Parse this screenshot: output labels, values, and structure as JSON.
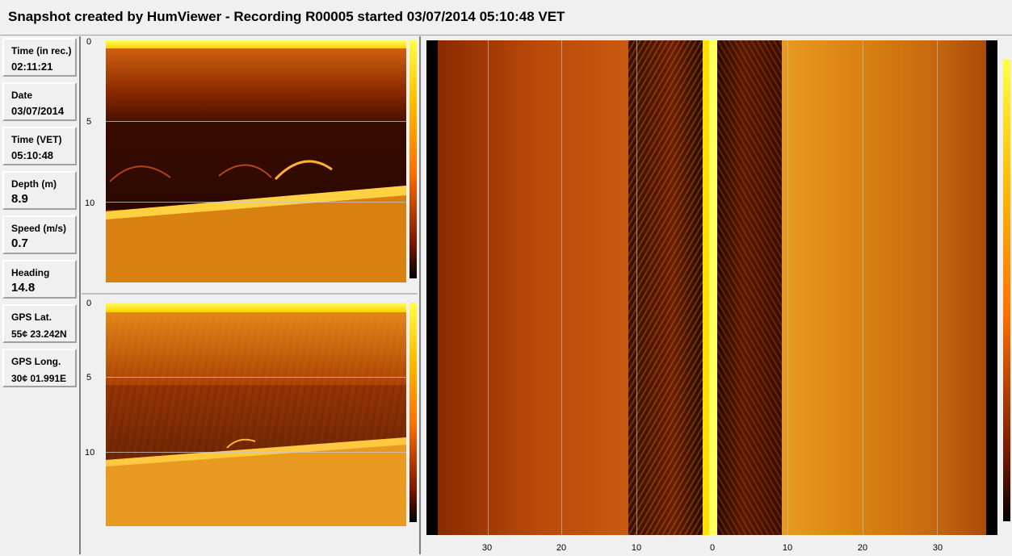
{
  "header": {
    "title": "Snapshot created by HumViewer - Recording R00005 started 03/07/2014 05:10:48 VET"
  },
  "info_panel": {
    "items": [
      {
        "label": "Time (in rec.)",
        "value": "02:11:21"
      },
      {
        "label": "Date",
        "value": "03/07/2014"
      },
      {
        "label": "Time (VET)",
        "value": "05:10:48"
      },
      {
        "label": "Depth (m)",
        "value": "8.9"
      },
      {
        "label": "Speed (m/s)",
        "value": "0.7"
      },
      {
        "label": "Heading",
        "value": "14.8"
      },
      {
        "label": "GPS Lat.",
        "value": "55¢ 23.242N"
      },
      {
        "label": "GPS Long.",
        "value": "30¢ 01.991E"
      }
    ]
  },
  "down_scan_top": {
    "depth_ticks": [
      "0",
      "5",
      "10"
    ]
  },
  "down_scan_bottom": {
    "depth_ticks": [
      "0",
      "5",
      "10"
    ]
  },
  "side_scan": {
    "range_ticks": [
      "30",
      "20",
      "10",
      "0",
      "10",
      "20",
      "30"
    ]
  },
  "colors": {
    "palette_high": "#ffff40",
    "palette_mid": "#ff8000",
    "palette_low": "#000000",
    "frame": "#f0f0f0"
  }
}
